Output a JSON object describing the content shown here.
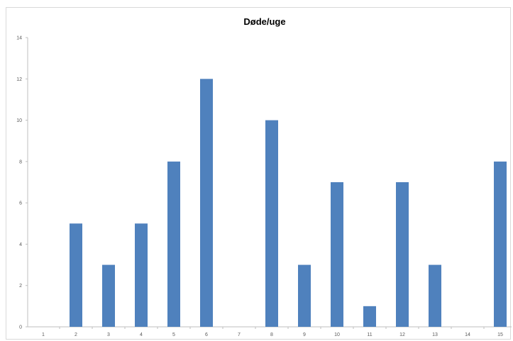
{
  "chart_data": {
    "type": "bar",
    "title": "Døde/uge",
    "xlabel": "",
    "ylabel": "",
    "categories": [
      "1",
      "2",
      "3",
      "4",
      "5",
      "6",
      "7",
      "8",
      "9",
      "10",
      "11",
      "12",
      "13",
      "14",
      "15"
    ],
    "values": [
      0,
      5,
      3,
      5,
      8,
      12,
      0,
      10,
      3,
      7,
      1,
      7,
      3,
      0,
      8
    ],
    "ylim": [
      0,
      14
    ],
    "yticks": [
      "0",
      "2",
      "4",
      "6",
      "8",
      "10",
      "12",
      "14"
    ],
    "grid": false,
    "legend": "none",
    "bar_color": "#4f81bd",
    "axis_color": "#bfbfbf"
  }
}
